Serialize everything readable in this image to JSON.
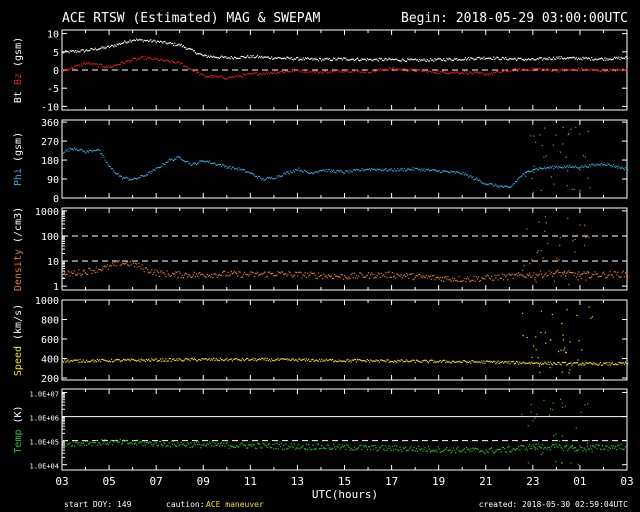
{
  "header": {
    "title": "ACE RTSW (Estimated) MAG & SWEPAM",
    "begin": "Begin: 2018-05-29 03:00:00UTC"
  },
  "footer": {
    "start_doy": "start DOY: 149",
    "caution_label": "caution:",
    "caution_text": "ACE maneuver",
    "created": "created: 2018-05-30 02:59:04UTC"
  },
  "colors": {
    "bt": "#ffffff",
    "bz": "#dd2222",
    "phi": "#3fa7d8",
    "density": "#e07a3c",
    "speed": "#e8e040",
    "temp": "#33bb33",
    "caution": "#e8e040",
    "axis": "#ffffff"
  },
  "chart_data": {
    "type": "scatter",
    "xlabel": "UTC(hours)",
    "x_ticks": [
      "03",
      "05",
      "07",
      "09",
      "11",
      "13",
      "15",
      "17",
      "19",
      "21",
      "23",
      "01",
      "03"
    ],
    "x_range_hours": [
      0,
      24
    ],
    "panels": [
      {
        "name": "magnetic",
        "ylabel_parts": [
          {
            "text": "Bt",
            "color": "#ffffff"
          },
          {
            "text": "Bz",
            "color": "#dd2222"
          },
          {
            "text": "(gsm)",
            "color": "#ffffff"
          }
        ],
        "scale": "linear",
        "ylim": [
          -11,
          11
        ],
        "ticks": [
          {
            "v": 10,
            "label": "10"
          },
          {
            "v": 5,
            "label": "5"
          },
          {
            "v": 0,
            "label": "0"
          },
          {
            "v": -5,
            "label": "-5"
          },
          {
            "v": -10,
            "label": "-10"
          }
        ],
        "dashed": [
          0
        ],
        "series": [
          {
            "name": "Bt",
            "color": "#ffffff",
            "points": [
              [
                0,
                5
              ],
              [
                1,
                5.5
              ],
              [
                2,
                6.5
              ],
              [
                3,
                8.5
              ],
              [
                4,
                8
              ],
              [
                5,
                7
              ],
              [
                6,
                4
              ],
              [
                7,
                3.5
              ],
              [
                8,
                3.8
              ],
              [
                9,
                3.5
              ],
              [
                10,
                3.2
              ],
              [
                11,
                3
              ],
              [
                12,
                3.2
              ],
              [
                13,
                3
              ],
              [
                14,
                3
              ],
              [
                15,
                2.8
              ],
              [
                16,
                3
              ],
              [
                17,
                3.2
              ],
              [
                18,
                3.5
              ],
              [
                19,
                3.2
              ],
              [
                20,
                3
              ],
              [
                21,
                3.5
              ],
              [
                22,
                3.3
              ],
              [
                23,
                3.2
              ],
              [
                24,
                3.5
              ]
            ]
          },
          {
            "name": "Bz",
            "color": "#dd2222",
            "points": [
              [
                0,
                0
              ],
              [
                1,
                2
              ],
              [
                2,
                1
              ],
              [
                3,
                3
              ],
              [
                3.5,
                3.5
              ],
              [
                4,
                3
              ],
              [
                5,
                2
              ],
              [
                6,
                -1.5
              ],
              [
                7,
                -2
              ],
              [
                8,
                -1
              ],
              [
                9,
                -0.5
              ],
              [
                10,
                0
              ],
              [
                11,
                -0.5
              ],
              [
                12,
                0
              ],
              [
                13,
                -0.3
              ],
              [
                14,
                0.5
              ],
              [
                15,
                0
              ],
              [
                16,
                -0.5
              ],
              [
                17,
                -0.5
              ],
              [
                18,
                -1
              ],
              [
                19,
                0
              ],
              [
                20,
                0.5
              ],
              [
                21,
                0
              ],
              [
                22,
                0.3
              ],
              [
                23,
                0
              ],
              [
                24,
                0.2
              ]
            ]
          }
        ]
      },
      {
        "name": "phi",
        "ylabel_parts": [
          {
            "text": "Phi",
            "color": "#3fa7d8"
          },
          {
            "text": "(gsm)",
            "color": "#ffffff"
          }
        ],
        "scale": "linear",
        "ylim": [
          0,
          370
        ],
        "ticks": [
          {
            "v": 360,
            "label": "360"
          },
          {
            "v": 270,
            "label": "270"
          },
          {
            "v": 180,
            "label": "180"
          },
          {
            "v": 90,
            "label": "90"
          },
          {
            "v": 0,
            "label": "0"
          }
        ],
        "dashed": [],
        "series": [
          {
            "name": "Phi",
            "color": "#3fa7d8",
            "points": [
              [
                0,
                220
              ],
              [
                0.5,
                240
              ],
              [
                1,
                220
              ],
              [
                1.5,
                235
              ],
              [
                2,
                150
              ],
              [
                2.5,
                100
              ],
              [
                3,
                90
              ],
              [
                3.5,
                110
              ],
              [
                4,
                140
              ],
              [
                4.5,
                180
              ],
              [
                5,
                195
              ],
              [
                5.5,
                160
              ],
              [
                6,
                180
              ],
              [
                7,
                150
              ],
              [
                7.5,
                140
              ],
              [
                8,
                120
              ],
              [
                8.5,
                90
              ],
              [
                9,
                100
              ],
              [
                10,
                140
              ],
              [
                10.5,
                120
              ],
              [
                11,
                135
              ],
              [
                12,
                125
              ],
              [
                13,
                140
              ],
              [
                14,
                135
              ],
              [
                15,
                140
              ],
              [
                16,
                130
              ],
              [
                17,
                120
              ],
              [
                18,
                70
              ],
              [
                18.5,
                60
              ],
              [
                19,
                50
              ],
              [
                19.5,
                110
              ],
              [
                20,
                140
              ],
              [
                21,
                150
              ],
              [
                22,
                150
              ],
              [
                23,
                165
              ],
              [
                24,
                140
              ]
            ]
          }
        ]
      },
      {
        "name": "density",
        "ylabel_parts": [
          {
            "text": "Density",
            "color": "#e07a3c"
          },
          {
            "text": "(/cm3)",
            "color": "#ffffff"
          }
        ],
        "scale": "log",
        "ylim": [
          0.7,
          1300
        ],
        "ticks": [
          {
            "v": 1000,
            "label": "1000"
          },
          {
            "v": 100,
            "label": "100"
          },
          {
            "v": 10,
            "label": "10"
          },
          {
            "v": 1,
            "label": "1"
          }
        ],
        "dashed": [
          100,
          10
        ],
        "series": [
          {
            "name": "Density",
            "color": "#e07a3c",
            "points": [
              [
                0,
                3
              ],
              [
                1,
                4
              ],
              [
                2,
                6
              ],
              [
                2.5,
                9
              ],
              [
                3,
                8
              ],
              [
                3.5,
                5
              ],
              [
                4,
                3.5
              ],
              [
                5,
                3
              ],
              [
                6,
                3
              ],
              [
                7,
                3.2
              ],
              [
                8,
                3
              ],
              [
                9,
                3.3
              ],
              [
                10,
                3
              ],
              [
                11,
                2.8
              ],
              [
                12,
                2.5
              ],
              [
                13,
                2.8
              ],
              [
                14,
                3
              ],
              [
                15,
                2.5
              ],
              [
                16,
                2.2
              ],
              [
                17,
                2
              ],
              [
                18,
                2.2
              ],
              [
                19,
                2.5
              ],
              [
                20,
                3
              ],
              [
                21,
                3.5
              ],
              [
                22,
                3
              ],
              [
                23,
                3
              ],
              [
                24,
                3.2
              ]
            ]
          }
        ]
      },
      {
        "name": "speed",
        "ylabel_parts": [
          {
            "text": "Speed",
            "color": "#e8e040"
          },
          {
            "text": "(km/s)",
            "color": "#ffffff"
          }
        ],
        "scale": "linear",
        "ylim": [
          180,
          1000
        ],
        "ticks": [
          {
            "v": 1000,
            "label": "1000"
          },
          {
            "v": 800,
            "label": "800"
          },
          {
            "v": 600,
            "label": "600"
          },
          {
            "v": 400,
            "label": "400"
          },
          {
            "v": 200,
            "label": "200"
          }
        ],
        "dashed": [],
        "series": [
          {
            "name": "Speed",
            "color": "#e8e040",
            "points": [
              [
                0,
                380
              ],
              [
                2,
                385
              ],
              [
                4,
                390
              ],
              [
                6,
                395
              ],
              [
                8,
                395
              ],
              [
                10,
                390
              ],
              [
                12,
                385
              ],
              [
                14,
                380
              ],
              [
                16,
                375
              ],
              [
                18,
                370
              ],
              [
                19,
                365
              ],
              [
                20,
                360
              ],
              [
                21,
                355
              ],
              [
                22,
                350
              ],
              [
                23,
                350
              ],
              [
                24,
                355
              ]
            ]
          }
        ]
      },
      {
        "name": "temp",
        "ylabel_parts": [
          {
            "text": "Temp",
            "color": "#33bb33"
          },
          {
            "text": "(K)",
            "color": "#ffffff"
          }
        ],
        "scale": "log",
        "ylim": [
          6000,
          14000000
        ],
        "ticks": [
          {
            "v": 10000000,
            "label": "1.0E+07"
          },
          {
            "v": 1000000,
            "label": "1.0E+06"
          },
          {
            "v": 100000,
            "label": "1.0E+05"
          },
          {
            "v": 10000,
            "label": "1.0E+04"
          }
        ],
        "dashed": [
          100000
        ],
        "series": [
          {
            "name": "Temp",
            "color": "#33bb33",
            "points": [
              [
                0,
                80000
              ],
              [
                2,
                90000
              ],
              [
                4,
                80000
              ],
              [
                6,
                70000
              ],
              [
                8,
                65000
              ],
              [
                10,
                60000
              ],
              [
                12,
                55000
              ],
              [
                14,
                50000
              ],
              [
                16,
                45000
              ],
              [
                18,
                40000
              ],
              [
                19,
                45000
              ],
              [
                20,
                60000
              ],
              [
                21,
                55000
              ],
              [
                22,
                50000
              ],
              [
                23,
                55000
              ],
              [
                24,
                60000
              ]
            ]
          }
        ]
      }
    ]
  }
}
